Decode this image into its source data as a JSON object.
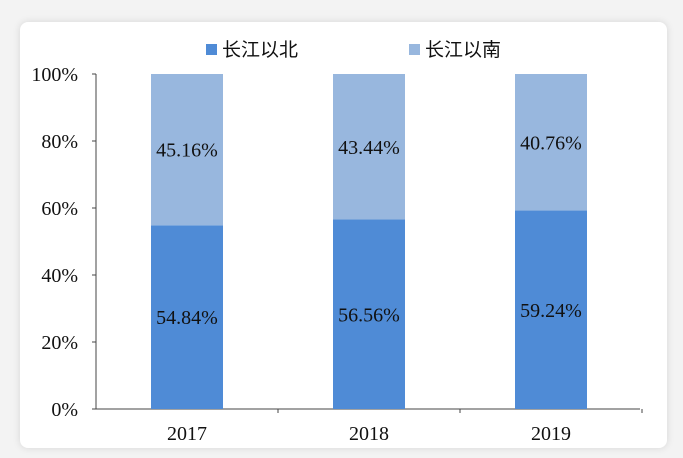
{
  "chart_data": {
    "type": "bar",
    "stacked": true,
    "categories": [
      "2017",
      "2018",
      "2019"
    ],
    "series": [
      {
        "name": "长江以北",
        "values": [
          54.84,
          56.56,
          59.24
        ],
        "labels": [
          "54.84%",
          "56.56%",
          "59.24%"
        ],
        "color": "#4f8bd6"
      },
      {
        "name": "长江以南",
        "values": [
          45.16,
          43.44,
          40.76
        ],
        "labels": [
          "45.16%",
          "43.44%",
          "40.76%"
        ],
        "color": "#98b7de"
      }
    ],
    "ylim": [
      0,
      100
    ],
    "yticks": [
      "0%",
      "20%",
      "40%",
      "60%",
      "80%",
      "100%"
    ],
    "grid": false,
    "legend": "top"
  }
}
